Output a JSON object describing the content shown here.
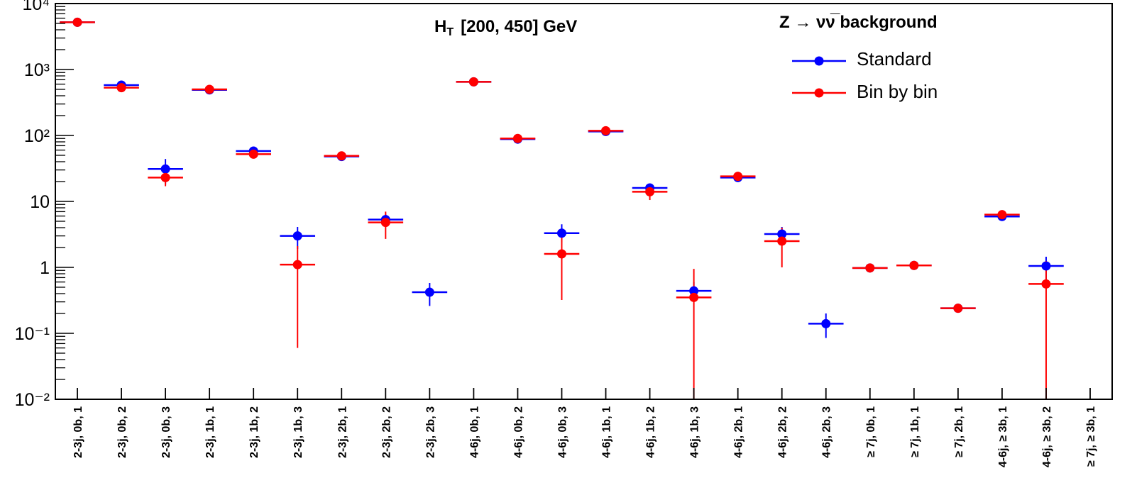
{
  "chart_data": {
    "type": "scatter",
    "title_main": "H",
    "title_sub": "T",
    "title_range": "[200, 450] GeV",
    "annotation": "Z → νν̅ background",
    "yscale": "log",
    "ylim": [
      0.01,
      10000
    ],
    "y_tick_labels": [
      "10⁻²",
      "10⁻¹",
      "1",
      "10",
      "10²",
      "10³",
      "10⁴"
    ],
    "legend_position": "top-right",
    "categories": [
      "2-3j, 0b, 1",
      "2-3j, 0b, 2",
      "2-3j, 0b, 3",
      "2-3j, 1b, 1",
      "2-3j, 1b, 2",
      "2-3j, 1b, 3",
      "2-3j, 2b, 1",
      "2-3j, 2b, 2",
      "2-3j, 2b, 3",
      "4-6j, 0b, 1",
      "4-6j, 0b, 2",
      "4-6j, 0b, 3",
      "4-6j, 1b, 1",
      "4-6j, 1b, 2",
      "4-6j, 1b, 3",
      "4-6j, 2b, 1",
      "4-6j, 2b, 2",
      "4-6j, 2b, 3",
      "≥ 7j, 0b, 1",
      "≥ 7j, 1b, 1",
      "≥ 7j, 2b, 1",
      "4-6j, ≥ 3b, 1",
      "4-6j, ≥ 3b, 2",
      "≥ 7j, ≥ 3b, 1"
    ],
    "series": [
      {
        "name": "Standard",
        "color": "#0000ff",
        "values": [
          5200,
          580,
          31,
          490,
          58,
          3.0,
          48,
          5.3,
          0.42,
          650,
          88,
          3.3,
          115,
          16,
          0.44,
          23,
          3.2,
          0.14,
          0.98,
          1.07,
          0.24,
          5.9,
          1.05,
          null
        ],
        "err_low": [
          null,
          null,
          18,
          null,
          null,
          1.9,
          null,
          4.2,
          0.26,
          null,
          75,
          2.4,
          null,
          13.5,
          0.31,
          null,
          2.4,
          0.085,
          null,
          null,
          null,
          null,
          0.65,
          null
        ],
        "err_high": [
          null,
          null,
          44,
          null,
          null,
          4.1,
          null,
          6.5,
          0.58,
          null,
          100,
          4.5,
          null,
          18.5,
          0.6,
          null,
          4.1,
          0.2,
          null,
          null,
          null,
          null,
          1.45,
          null
        ]
      },
      {
        "name": "Bin by bin",
        "color": "#ff0000",
        "values": [
          5200,
          530,
          23,
          500,
          52,
          1.1,
          49,
          4.8,
          null,
          650,
          90,
          1.6,
          118,
          14,
          0.35,
          24,
          2.5,
          null,
          0.98,
          1.07,
          0.24,
          6.3,
          0.56,
          null
        ],
        "err_low": [
          null,
          null,
          17,
          null,
          null,
          0.06,
          null,
          2.7,
          null,
          null,
          80,
          0.32,
          null,
          10.5,
          0.01,
          null,
          1.0,
          null,
          null,
          null,
          null,
          null,
          0.01,
          null
        ],
        "err_high": [
          null,
          null,
          30,
          null,
          null,
          2.1,
          null,
          7.0,
          null,
          null,
          100,
          2.9,
          null,
          17.5,
          0.95,
          null,
          4.0,
          null,
          null,
          null,
          null,
          null,
          1.25,
          null
        ]
      }
    ]
  }
}
